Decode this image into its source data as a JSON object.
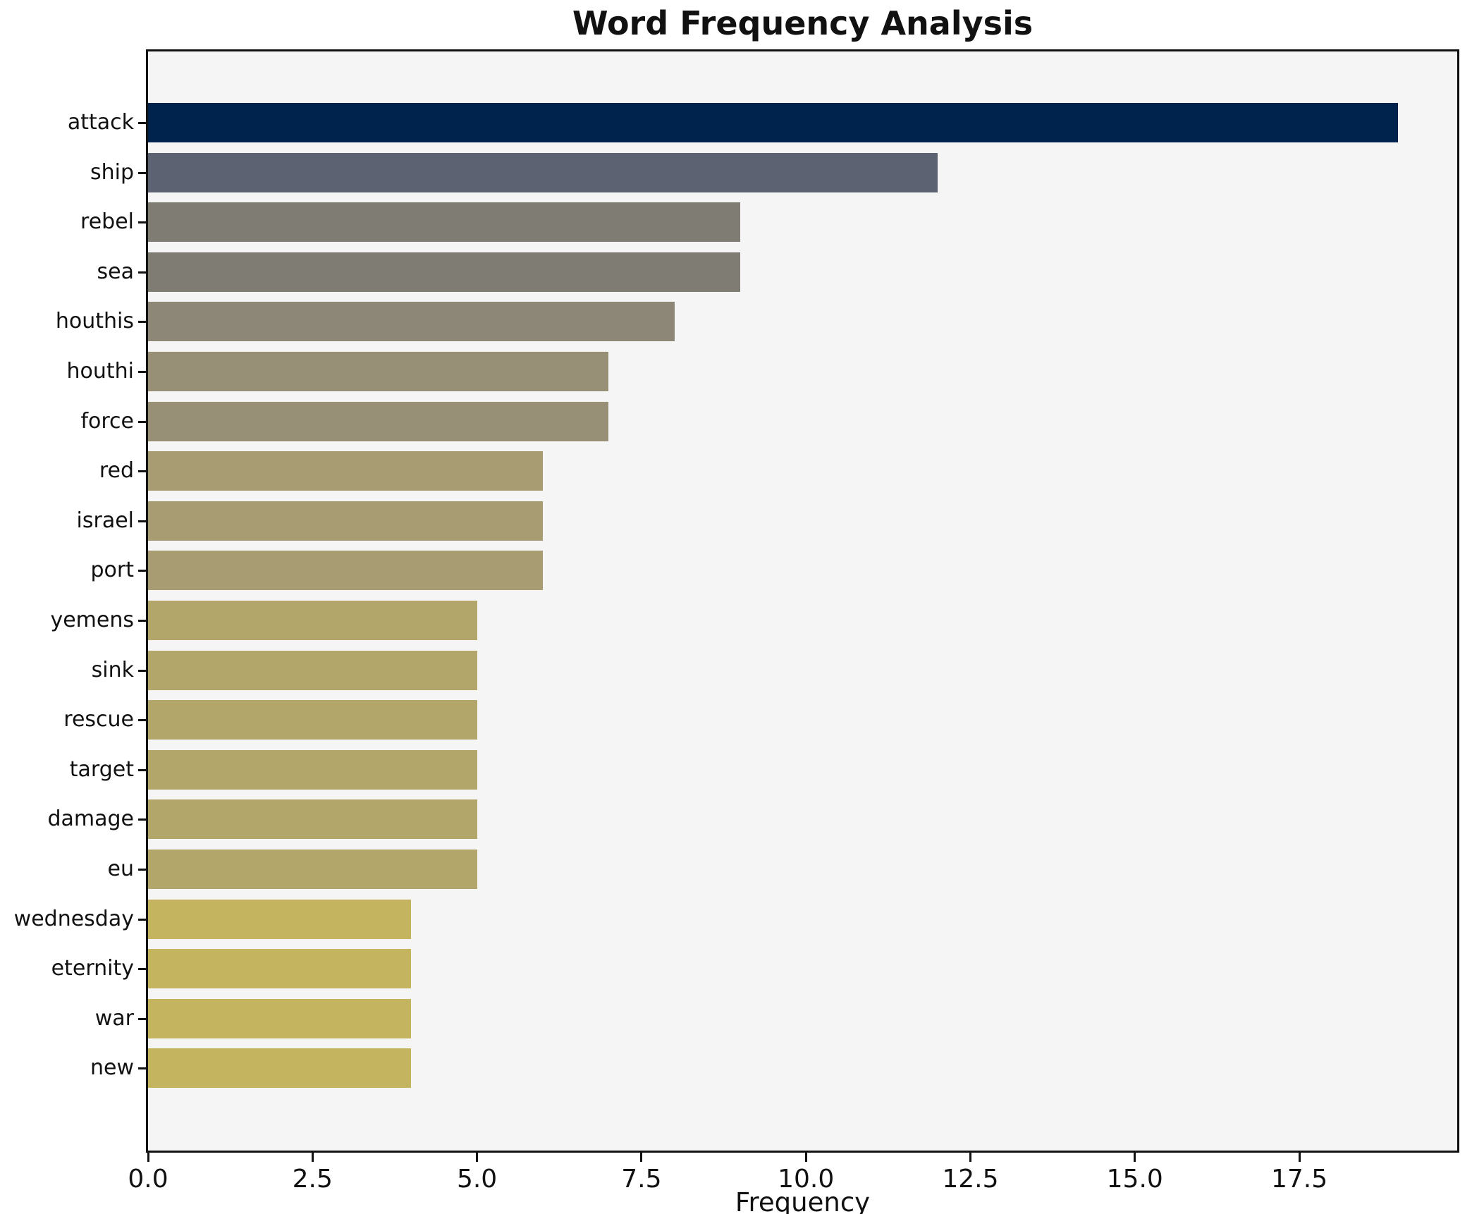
{
  "chart_data": {
    "type": "bar",
    "orientation": "horizontal",
    "title": "Word Frequency Analysis",
    "xlabel": "Frequency",
    "ylabel": "",
    "categories": [
      "attack",
      "ship",
      "rebel",
      "sea",
      "houthis",
      "houthi",
      "force",
      "red",
      "israel",
      "port",
      "yemens",
      "sink",
      "rescue",
      "target",
      "damage",
      "eu",
      "wednesday",
      "eternity",
      "war",
      "new"
    ],
    "values": [
      19,
      12,
      9,
      9,
      8,
      7,
      7,
      6,
      6,
      6,
      5,
      5,
      5,
      5,
      5,
      5,
      4,
      4,
      4,
      4
    ],
    "bar_colors": [
      "#00234e",
      "#5c6271",
      "#7f7d73",
      "#7f7d73",
      "#8d8777",
      "#989076",
      "#989076",
      "#a79c72",
      "#a79c72",
      "#a79c72",
      "#b2a66b",
      "#b2a66b",
      "#b2a66b",
      "#b2a66b",
      "#b2a66b",
      "#b2a66b",
      "#c4b45f",
      "#c4b45f",
      "#c4b45f",
      "#c4b45f"
    ],
    "xlim": [
      0,
      19.9
    ],
    "xticks": [
      0.0,
      2.5,
      5.0,
      7.5,
      10.0,
      12.5,
      15.0,
      17.5
    ],
    "xtick_labels": [
      "0.0",
      "2.5",
      "5.0",
      "7.5",
      "10.0",
      "12.5",
      "15.0",
      "17.5"
    ],
    "grid": false,
    "legend": null,
    "plot_bg": "#f5f5f6",
    "figure_bg": "#ffffff",
    "frame_color": "#111111"
  }
}
